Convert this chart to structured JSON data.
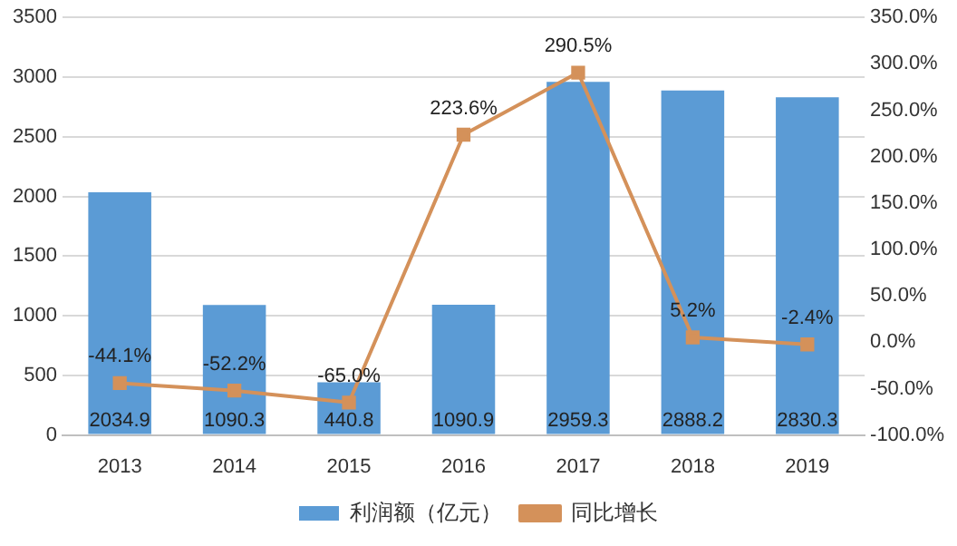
{
  "chart_data": {
    "type": "bar",
    "categories": [
      "2013",
      "2014",
      "2015",
      "2016",
      "2017",
      "2018",
      "2019"
    ],
    "series": [
      {
        "name": "利润额（亿元）",
        "color": "#5b9bd5",
        "values": [
          2034.9,
          1090.3,
          440.8,
          1090.9,
          2959.3,
          2888.2,
          2830.3
        ],
        "value_labels": [
          "2034.9",
          "1090.3",
          "440.8",
          "1090.9",
          "2959.3",
          "2888.2",
          "2830.3"
        ]
      },
      {
        "name": "同比增长",
        "type": "line",
        "axis": "y2",
        "color": "#d4915a",
        "values": [
          -44.1,
          -52.2,
          -65.0,
          223.6,
          290.5,
          5.2,
          -2.4
        ],
        "value_labels": [
          "-44.1%",
          "-52.2%",
          "-65.0%",
          "223.6%",
          "290.5%",
          "5.2%",
          "-2.4%"
        ]
      }
    ],
    "ylim": [
      0,
      3500
    ],
    "yticks": [
      0,
      500,
      1000,
      1500,
      2000,
      2500,
      3000,
      3500
    ],
    "y2lim": [
      -100,
      350
    ],
    "y2ticks": [
      {
        "value": -100,
        "label": "-100.0%"
      },
      {
        "value": -50,
        "label": "-50.0%"
      },
      {
        "value": 0,
        "label": "0.0%"
      },
      {
        "value": 50,
        "label": "50.0%"
      },
      {
        "value": 100,
        "label": "100.0%"
      },
      {
        "value": 150,
        "label": "150.0%"
      },
      {
        "value": 200,
        "label": "200.0%"
      },
      {
        "value": 250,
        "label": "250.0%"
      },
      {
        "value": 300,
        "label": "300.0%"
      },
      {
        "value": 350,
        "label": "350.0%"
      }
    ],
    "grid": "y",
    "legend": "bottom",
    "marker": "square",
    "line_style": "solid"
  }
}
